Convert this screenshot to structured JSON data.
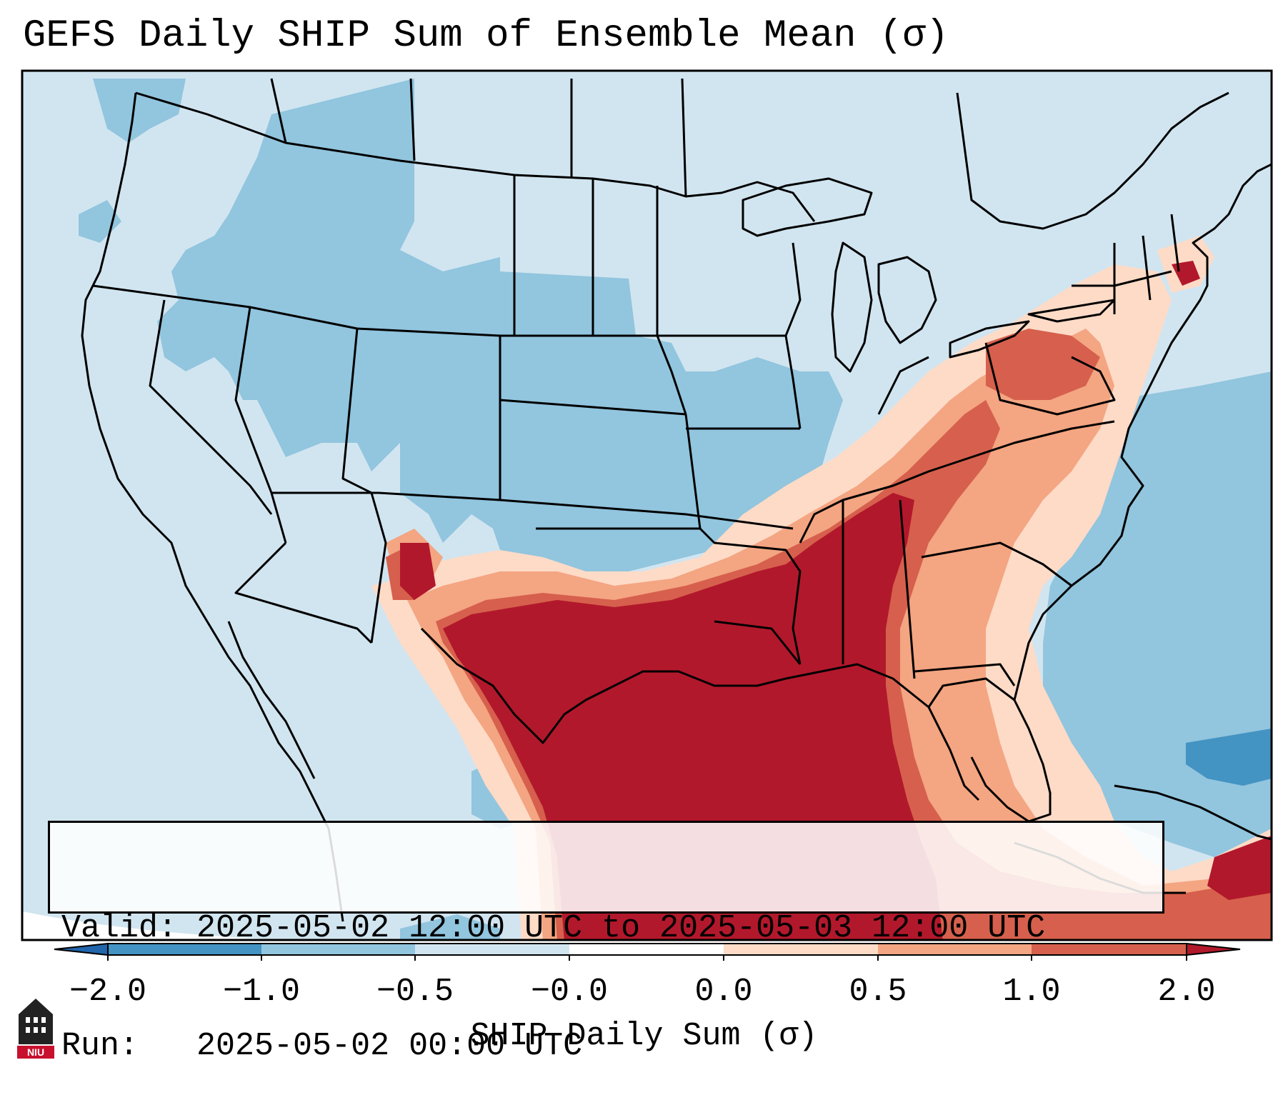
{
  "title": "GEFS Daily SHIP Sum of Ensemble Mean (σ)",
  "info": {
    "valid_line": "Valid: 2025-05-02 12:00 UTC to 2025-05-03 12:00 UTC",
    "run_line": "Run:   2025-05-02 00:00 UTC"
  },
  "colorbar": {
    "label": "SHIP Daily Sum (σ)",
    "ticks": [
      "−2.0",
      "−1.0",
      "−0.5",
      "−0.0",
      "0.0",
      "0.5",
      "1.0",
      "2.0"
    ],
    "colors": [
      "#4393c3",
      "#92c5de",
      "#d1e5f0",
      "#ffffff",
      "#fddbc7",
      "#f4a582",
      "#d6604d",
      "#b2182b"
    ],
    "extend_low_color": "#2166ac",
    "extend_high_color": "#b2182b"
  },
  "logo": {
    "text": "NIU",
    "color": "#c8102e"
  }
}
